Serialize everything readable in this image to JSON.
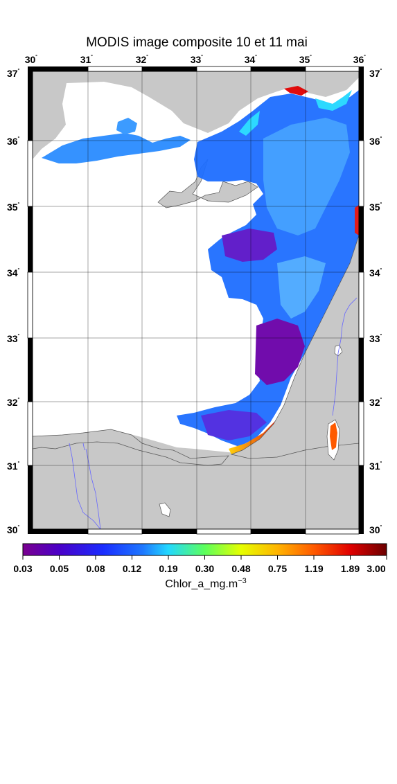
{
  "title": "MODIS image composite 10 et 11 mai",
  "map": {
    "lon_ticks": [
      "30",
      "31",
      "32",
      "33",
      "34",
      "35",
      "36"
    ],
    "lat_ticks": [
      "30",
      "31",
      "32",
      "33",
      "34",
      "35",
      "36",
      "37"
    ],
    "degree_mark": "˚",
    "colors": {
      "land": "#c8c8c8",
      "cloud_mask": "#ffffff",
      "grid": "#000000",
      "river": "#6666ff"
    }
  },
  "colorbar": {
    "labels": [
      "0.03",
      "0.05",
      "0.08",
      "0.12",
      "0.19",
      "0.30",
      "0.48",
      "0.75",
      "1.19",
      "1.89",
      "3.00"
    ],
    "title_base": "Chlor_a_mg.m",
    "title_sup": "−3",
    "scale": "log",
    "range": [
      0.03,
      3.0
    ],
    "colors": [
      "#7a008f",
      "#4a00c8",
      "#1a2cff",
      "#1e78ff",
      "#22d8ff",
      "#5cff5c",
      "#e6ff00",
      "#ffb400",
      "#ff5a00",
      "#e00000",
      "#6b0000"
    ]
  }
}
